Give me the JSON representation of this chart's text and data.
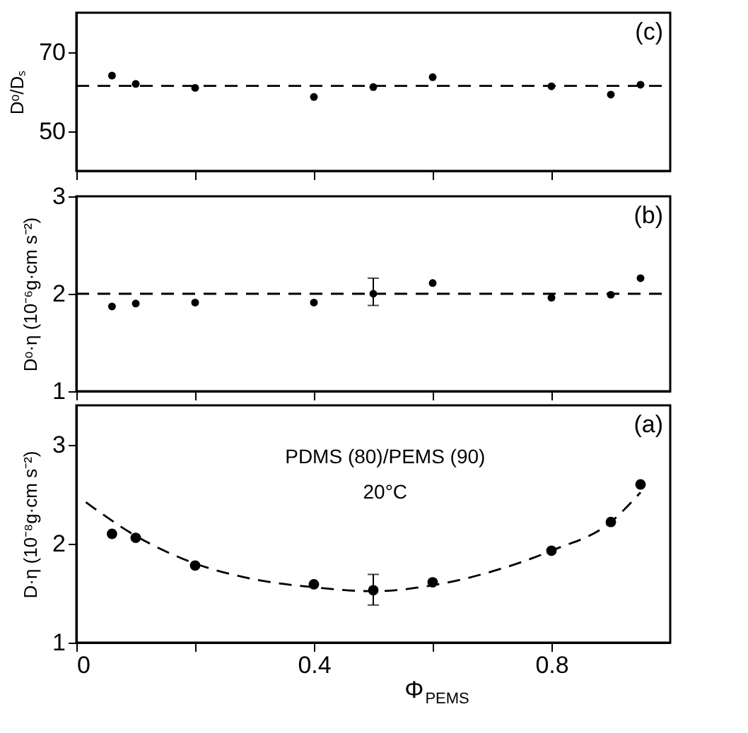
{
  "chart_data": [
    {
      "type": "scatter",
      "ylabel": "Dᵒ/Dₛ",
      "annotations": [
        "(c)"
      ],
      "xlim": [
        0,
        1
      ],
      "xticks": [
        {
          "value": 0,
          "label": null
        },
        {
          "value": 0.2,
          "label": null
        },
        {
          "value": 0.4,
          "label": null
        },
        {
          "value": 0.6,
          "label": null
        },
        {
          "value": 0.8,
          "label": null
        }
      ],
      "ylim": [
        40,
        80
      ],
      "yticks": [
        50,
        70
      ],
      "tick_labels": "y",
      "grid": false,
      "marker": "circle",
      "x": [
        0.06,
        0.1,
        0.2,
        0.4,
        0.5,
        0.6,
        0.8,
        0.9,
        0.95
      ],
      "series": [
        {
          "color": "#000000",
          "values": [
            64.1,
            62.0,
            61.0,
            58.7,
            61.2,
            63.7,
            61.4,
            59.3,
            61.8
          ]
        },
        {
          "type": "line",
          "line_style": "dashed",
          "marker": "none",
          "color": "#000000",
          "x": [
            0,
            1
          ],
          "values": [
            61.5,
            61.5
          ]
        }
      ]
    },
    {
      "type": "scatter",
      "ylabel": "Dᵒ·η (10⁻⁶g·cm s⁻²)",
      "annotations": [
        "(b)"
      ],
      "xlim": [
        0,
        1
      ],
      "xticks": [
        {
          "value": 0,
          "label": null
        },
        {
          "value": 0.2,
          "label": null
        },
        {
          "value": 0.4,
          "label": null
        },
        {
          "value": 0.6,
          "label": null
        },
        {
          "value": 0.8,
          "label": null
        }
      ],
      "ylim": [
        1,
        3
      ],
      "yticks": [
        1,
        2,
        3
      ],
      "tick_labels": "y",
      "grid": false,
      "marker": "circle",
      "x": [
        0.06,
        0.1,
        0.2,
        0.4,
        0.5,
        0.6,
        0.8,
        0.9,
        0.95
      ],
      "series": [
        {
          "color": "#000000",
          "values": [
            1.87,
            1.9,
            1.91,
            1.91,
            2.0,
            2.11,
            1.96,
            1.99,
            2.16
          ],
          "errors": [
            null,
            null,
            null,
            null,
            [
              1.88,
              2.16
            ],
            null,
            null,
            null,
            null
          ]
        },
        {
          "type": "line",
          "line_style": "dashed",
          "marker": "none",
          "color": "#000000",
          "x": [
            0,
            1
          ],
          "values": [
            2.0,
            2.0
          ]
        }
      ]
    },
    {
      "type": "scatter",
      "ylabel": "D·η (10⁻⁸g·cm s⁻²)",
      "xlabel": "Φ$_{PEMS}$",
      "annotations": [
        "(a)",
        "PDMS (80)/PEMS (90)",
        "20°C"
      ],
      "xlim": [
        0,
        1
      ],
      "xticks": [
        0,
        {
          "value": 0.2,
          "label": null
        },
        0.4,
        {
          "value": 0.6,
          "label": null
        },
        0.8
      ],
      "ylim": [
        1,
        3.4
      ],
      "yticks": [
        1,
        2,
        3
      ],
      "grid": false,
      "marker": "circle",
      "x": [
        0.06,
        0.1,
        0.2,
        0.4,
        0.5,
        0.6,
        0.8,
        0.9,
        0.95
      ],
      "series": [
        {
          "color": "#000000",
          "values": [
            2.1,
            2.06,
            1.78,
            1.59,
            1.53,
            1.61,
            1.93,
            2.22,
            2.6
          ],
          "errors": [
            null,
            null,
            null,
            null,
            [
              1.38,
              1.69
            ],
            null,
            null,
            null,
            null
          ]
        },
        {
          "type": "line",
          "line_style": "dashed",
          "marker": "none",
          "color": "#000000",
          "x": [
            0.016,
            0.1,
            0.2,
            0.3,
            0.4,
            0.5,
            0.6,
            0.7,
            0.8,
            0.9,
            0.95
          ],
          "values": [
            2.42,
            2.08,
            1.8,
            1.64,
            1.56,
            1.52,
            1.58,
            1.72,
            1.93,
            2.22,
            2.52
          ]
        }
      ]
    }
  ]
}
